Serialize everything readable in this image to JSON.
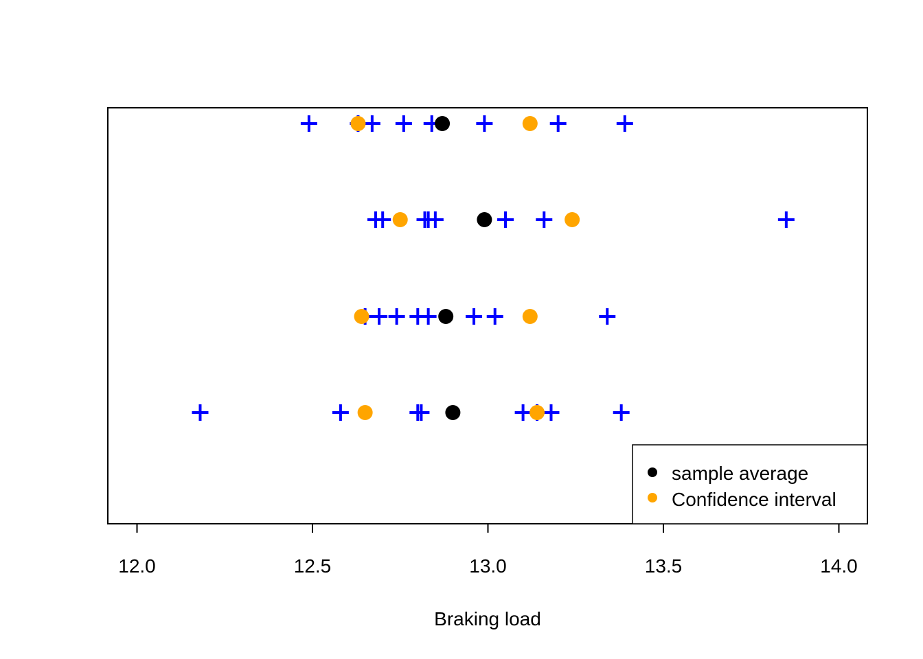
{
  "chart_data": {
    "type": "scatter",
    "title": "",
    "xlabel": "Braking load",
    "ylabel": "",
    "xlim": [
      11.92,
      14.08
    ],
    "xticks": [
      12.0,
      12.5,
      13.0,
      13.5,
      14.0
    ],
    "xtick_labels": [
      "12.0",
      "12.5",
      "13.0",
      "13.5",
      "14.0"
    ],
    "grid": false,
    "legend_position": "bottom-right",
    "colors": {
      "observations": "#0000ff",
      "sample_average": "#000000",
      "confidence_interval": "#ffa500"
    },
    "rows": [
      {
        "observations": [
          12.49,
          12.63,
          12.67,
          12.76,
          12.84,
          12.99,
          13.2,
          13.39
        ],
        "sample_average": 12.87,
        "confidence_interval": [
          12.63,
          13.12
        ]
      },
      {
        "observations": [
          12.68,
          12.7,
          12.82,
          12.83,
          12.85,
          13.05,
          13.16,
          13.85
        ],
        "sample_average": 12.99,
        "confidence_interval": [
          12.75,
          13.24
        ]
      },
      {
        "observations": [
          12.65,
          12.69,
          12.74,
          12.8,
          12.83,
          12.96,
          13.02,
          13.34
        ],
        "sample_average": 12.88,
        "confidence_interval": [
          12.64,
          13.12
        ]
      },
      {
        "observations": [
          12.18,
          12.58,
          12.8,
          12.81,
          13.1,
          13.14,
          13.18,
          13.38
        ],
        "sample_average": 12.9,
        "confidence_interval": [
          12.65,
          13.14
        ]
      }
    ]
  },
  "legend": {
    "items": [
      {
        "label": "sample average",
        "color": "#000000"
      },
      {
        "label": "Confidence interval",
        "color": "#ffa500"
      }
    ]
  }
}
